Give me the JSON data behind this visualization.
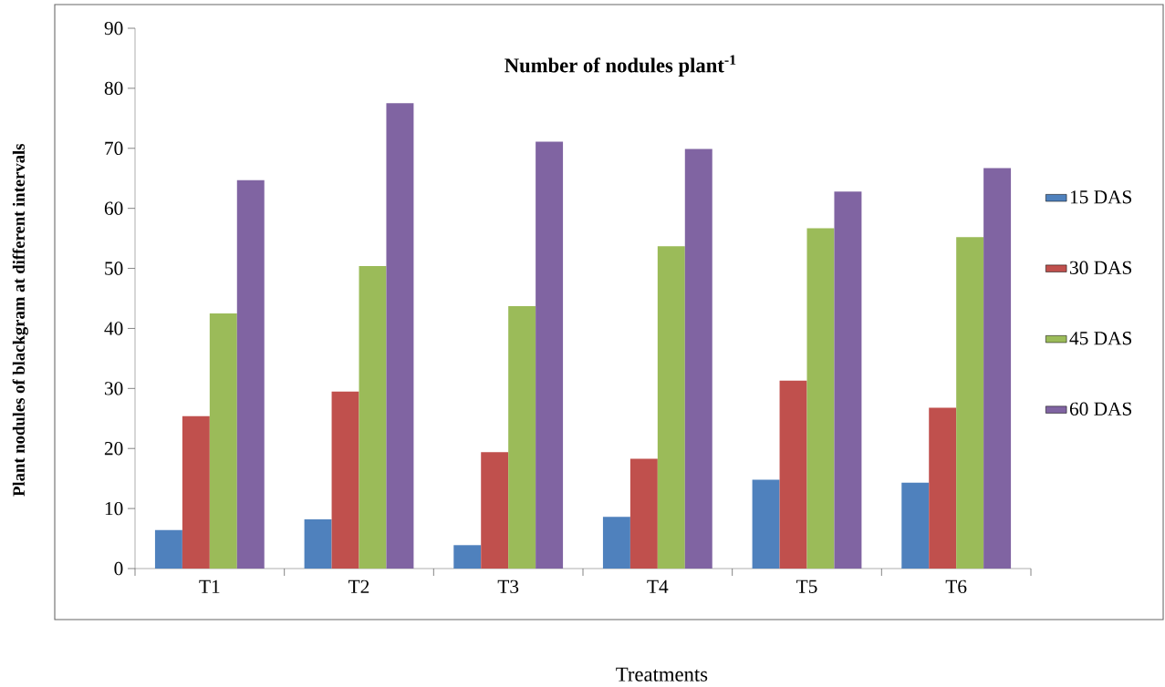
{
  "chart_data": {
    "type": "bar",
    "title": "Number of nodules plant$^{-1}$",
    "xlabel": "Treatments",
    "ylabel": "Plant  nodules of blackgram at different intervals",
    "categories": [
      "T1",
      "T2",
      "T3",
      "T4",
      "T5",
      "T6"
    ],
    "series": [
      {
        "name": "15 DAS",
        "color": "#4f81bd",
        "values": [
          6.4,
          8.2,
          3.9,
          8.6,
          14.8,
          14.3
        ]
      },
      {
        "name": "30 DAS",
        "color": "#c0504d",
        "values": [
          25.4,
          29.5,
          19.4,
          18.3,
          31.3,
          26.8
        ]
      },
      {
        "name": "45 DAS",
        "color": "#9bbb59",
        "values": [
          42.5,
          50.4,
          43.7,
          53.7,
          56.7,
          55.2
        ]
      },
      {
        "name": "60 DAS",
        "color": "#8064a2",
        "values": [
          64.7,
          77.5,
          71.1,
          69.9,
          62.8,
          66.7
        ]
      }
    ],
    "ylim": [
      0,
      90
    ],
    "yticks": [
      0,
      10,
      20,
      30,
      40,
      50,
      60,
      70,
      80,
      90
    ],
    "grid": false,
    "legend": "right"
  }
}
